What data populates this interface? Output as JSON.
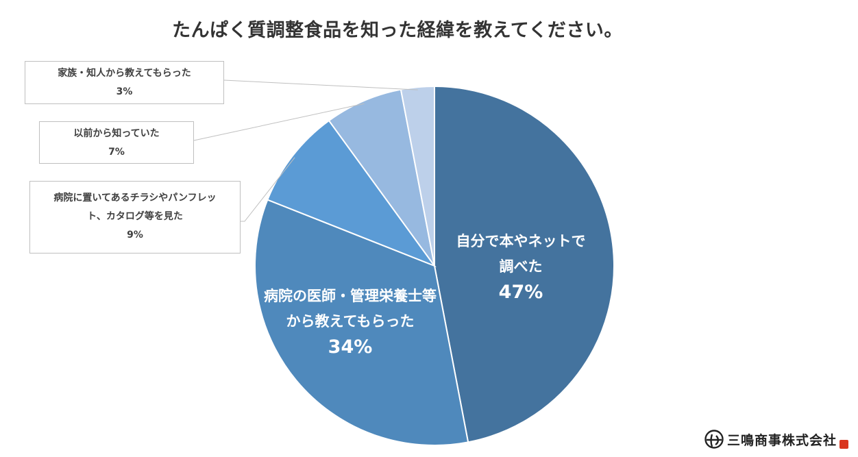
{
  "chart_data": {
    "type": "pie",
    "title": "たんぱく質調整食品を知った経緯を教えてください。",
    "slices": [
      {
        "label_lines": [
          "自分で本やネットで",
          "調べた"
        ],
        "value": 47,
        "value_label": "47%",
        "color": "#44739e",
        "label_position": "inside"
      },
      {
        "label_lines": [
          "病院の医師・管理栄養士等",
          "から教えてもらった"
        ],
        "value": 34,
        "value_label": "34%",
        "color": "#4f89bc",
        "label_position": "inside"
      },
      {
        "label_lines": [
          "病院に置いてあるチラシやパンフレッ",
          "ト、カタログ等を見た"
        ],
        "value": 9,
        "value_label": "9%",
        "color": "#5b9bd5",
        "label_position": "outside"
      },
      {
        "label_lines": [
          "以前から知っていた"
        ],
        "value": 7,
        "value_label": "7%",
        "color": "#97b9e0",
        "label_position": "outside"
      },
      {
        "label_lines": [
          "家族・知人から教えてもらった"
        ],
        "value": 3,
        "value_label": "3%",
        "color": "#bdd0ea",
        "label_position": "outside"
      }
    ],
    "start_angle": "12 o'clock",
    "direction": "clockwise",
    "legend": "none"
  },
  "brand": {
    "name": "三鳴商事株式会社",
    "logo_icon": "brand-mark-icon",
    "seal_color": "#d9361f"
  }
}
